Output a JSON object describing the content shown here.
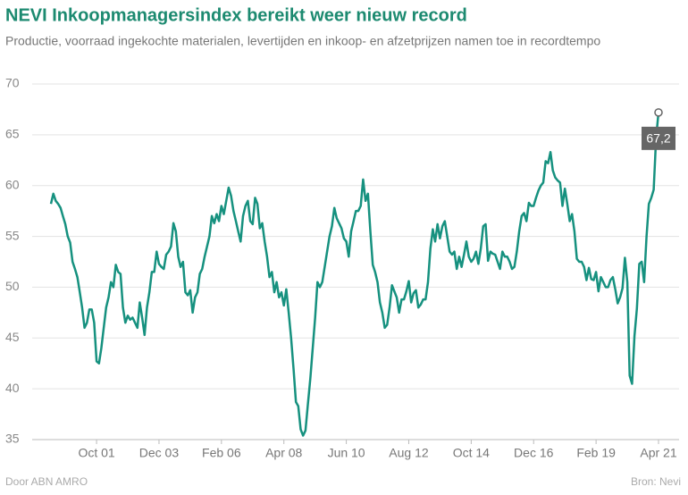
{
  "chart_data": {
    "type": "line",
    "title": "NEVI Inkoopmanagersindex bereikt weer nieuw record",
    "subtitle": "Productie, voorraad ingekochte materialen, levertijden en inkoop- en afzetprijzen namen toe in recordtempo",
    "source_left": "Door ABN AMRO",
    "source_right": "Bron: Nevi",
    "x": [
      "2000-03",
      "2000-04",
      "2000-05",
      "2000-06",
      "2000-07",
      "2000-08",
      "2000-09",
      "2000-10",
      "2000-11",
      "2000-12",
      "2001-01",
      "2001-02",
      "2001-03",
      "2001-04",
      "2001-05",
      "2001-06",
      "2001-07",
      "2001-08",
      "2001-09",
      "2001-10",
      "2001-11",
      "2001-12",
      "2002-01",
      "2002-02",
      "2002-03",
      "2002-04",
      "2002-05",
      "2002-06",
      "2002-07",
      "2002-08",
      "2002-09",
      "2002-10",
      "2002-11",
      "2002-12",
      "2003-01",
      "2003-02",
      "2003-03",
      "2003-04",
      "2003-05",
      "2003-06",
      "2003-07",
      "2003-08",
      "2003-09",
      "2003-10",
      "2003-11",
      "2003-12",
      "2004-01",
      "2004-02",
      "2004-03",
      "2004-04",
      "2004-05",
      "2004-06",
      "2004-07",
      "2004-08",
      "2004-09",
      "2004-10",
      "2004-11",
      "2004-12",
      "2005-01",
      "2005-02",
      "2005-03",
      "2005-04",
      "2005-05",
      "2005-06",
      "2005-07",
      "2005-08",
      "2005-09",
      "2005-10",
      "2005-11",
      "2005-12",
      "2006-01",
      "2006-02",
      "2006-03",
      "2006-04",
      "2006-05",
      "2006-06",
      "2006-07",
      "2006-08",
      "2006-09",
      "2006-10",
      "2006-11",
      "2006-12",
      "2007-01",
      "2007-02",
      "2007-03",
      "2007-04",
      "2007-05",
      "2007-06",
      "2007-07",
      "2007-08",
      "2007-09",
      "2007-10",
      "2007-11",
      "2007-12",
      "2008-01",
      "2008-02",
      "2008-03",
      "2008-04",
      "2008-05",
      "2008-06",
      "2008-07",
      "2008-08",
      "2008-09",
      "2008-10",
      "2008-11",
      "2008-12",
      "2009-01",
      "2009-02",
      "2009-03",
      "2009-04",
      "2009-05",
      "2009-06",
      "2009-07",
      "2009-08",
      "2009-09",
      "2009-10",
      "2009-11",
      "2009-12",
      "2010-01",
      "2010-02",
      "2010-03",
      "2010-04",
      "2010-05",
      "2010-06",
      "2010-07",
      "2010-08",
      "2010-09",
      "2010-10",
      "2010-11",
      "2010-12",
      "2011-01",
      "2011-02",
      "2011-03",
      "2011-04",
      "2011-05",
      "2011-06",
      "2011-07",
      "2011-08",
      "2011-09",
      "2011-10",
      "2011-11",
      "2011-12",
      "2012-01",
      "2012-02",
      "2012-03",
      "2012-04",
      "2012-05",
      "2012-06",
      "2012-07",
      "2012-08",
      "2012-09",
      "2012-10",
      "2012-11",
      "2012-12",
      "2013-01",
      "2013-02",
      "2013-03",
      "2013-04",
      "2013-05",
      "2013-06",
      "2013-07",
      "2013-08",
      "2013-09",
      "2013-10",
      "2013-11",
      "2013-12",
      "2014-01",
      "2014-02",
      "2014-03",
      "2014-04",
      "2014-05",
      "2014-06",
      "2014-07",
      "2014-08",
      "2014-09",
      "2014-10",
      "2014-11",
      "2014-12",
      "2015-01",
      "2015-02",
      "2015-03",
      "2015-04",
      "2015-05",
      "2015-06",
      "2015-07",
      "2015-08",
      "2015-09",
      "2015-10",
      "2015-11",
      "2015-12",
      "2016-01",
      "2016-02",
      "2016-03",
      "2016-04",
      "2016-05",
      "2016-06",
      "2016-07",
      "2016-08",
      "2016-09",
      "2016-10",
      "2016-11",
      "2016-12",
      "2017-01",
      "2017-02",
      "2017-03",
      "2017-04",
      "2017-05",
      "2017-06",
      "2017-07",
      "2017-08",
      "2017-09",
      "2017-10",
      "2017-11",
      "2017-12",
      "2018-01",
      "2018-02",
      "2018-03",
      "2018-04",
      "2018-05",
      "2018-06",
      "2018-07",
      "2018-08",
      "2018-09",
      "2018-10",
      "2018-11",
      "2018-12",
      "2019-01",
      "2019-02",
      "2019-03",
      "2019-04",
      "2019-05",
      "2019-06",
      "2019-07",
      "2019-08",
      "2019-09",
      "2019-10",
      "2019-11",
      "2019-12",
      "2020-01",
      "2020-02",
      "2020-03",
      "2020-04",
      "2020-05",
      "2020-06",
      "2020-07",
      "2020-08",
      "2020-09",
      "2020-10",
      "2020-11",
      "2020-12",
      "2021-01",
      "2021-02",
      "2021-03",
      "2021-04"
    ],
    "series": [
      {
        "name": "NEVI Inkoopmanagersindex",
        "color": "#16917f",
        "end_label": "67,2",
        "values": [
          58.2,
          59.2,
          58.5,
          58.2,
          57.8,
          57.0,
          56.2,
          55.0,
          54.4,
          52.5,
          51.8,
          51.0,
          49.5,
          48.0,
          46.0,
          46.5,
          47.8,
          47.8,
          46.5,
          42.7,
          42.5,
          44.0,
          46.0,
          48.0,
          49.0,
          50.5,
          50.0,
          52.2,
          51.5,
          51.3,
          48.0,
          46.5,
          47.2,
          46.8,
          47.0,
          46.5,
          46.0,
          48.5,
          47.0,
          45.3,
          48.0,
          49.5,
          51.5,
          51.5,
          53.5,
          52.3,
          52.0,
          51.8,
          53.2,
          53.5,
          54.0,
          56.3,
          55.5,
          53.0,
          52.0,
          52.5,
          49.5,
          49.2,
          49.7,
          47.5,
          49.0,
          49.5,
          51.3,
          51.8,
          53.0,
          54.0,
          55.0,
          57.0,
          56.3,
          57.2,
          56.5,
          58.0,
          57.2,
          58.5,
          59.8,
          59.0,
          57.5,
          56.5,
          55.5,
          54.5,
          57.0,
          58.0,
          58.5,
          56.5,
          56.2,
          58.8,
          58.2,
          55.8,
          56.3,
          54.5,
          53.0,
          51.0,
          51.5,
          49.5,
          50.5,
          49.0,
          49.5,
          48.2,
          49.8,
          47.5,
          45.0,
          42.0,
          38.7,
          38.3,
          36.0,
          35.4,
          35.9,
          38.5,
          41.0,
          44.0,
          47.0,
          50.5,
          50.0,
          50.5,
          52.0,
          53.5,
          55.0,
          56.0,
          57.8,
          56.8,
          56.3,
          55.8,
          54.8,
          54.5,
          53.0,
          55.5,
          56.5,
          57.5,
          57.5,
          58.0,
          60.6,
          58.5,
          59.2,
          55.5,
          52.2,
          51.5,
          50.5,
          48.5,
          47.5,
          46.0,
          46.3,
          48.0,
          50.2,
          49.6,
          49.0,
          47.5,
          48.8,
          48.8,
          49.6,
          50.6,
          48.5,
          49.4,
          49.7,
          48.0,
          48.3,
          48.8,
          48.8,
          50.5,
          53.8,
          55.7,
          54.5,
          56.2,
          54.8,
          56.0,
          56.5,
          55.0,
          53.5,
          53.2,
          53.5,
          51.8,
          53.0,
          52.0,
          53.2,
          54.5,
          53.0,
          52.5,
          52.8,
          53.5,
          52.3,
          53.8,
          56.0,
          56.2,
          52.6,
          53.5,
          53.3,
          53.2,
          52.5,
          51.8,
          53.5,
          53.0,
          53.0,
          52.5,
          51.8,
          52.0,
          53.5,
          55.5,
          57.0,
          57.3,
          56.5,
          58.3,
          58.0,
          58.0,
          58.8,
          59.5,
          60.0,
          60.3,
          62.4,
          62.2,
          63.3,
          61.5,
          60.8,
          60.5,
          60.3,
          58.0,
          59.7,
          58.2,
          56.5,
          57.2,
          55.5,
          52.8,
          52.5,
          52.5,
          52.0,
          50.7,
          51.9,
          50.8,
          50.7,
          51.5,
          49.6,
          51.0,
          50.5,
          50.0,
          50.0,
          50.7,
          51.0,
          49.8,
          48.4,
          49.0,
          49.9,
          52.9,
          50.5,
          41.3,
          40.5,
          45.2,
          47.9,
          52.3,
          52.5,
          50.5,
          55.0,
          58.2,
          58.8,
          59.6,
          64.7,
          67.2
        ]
      }
    ],
    "xticks": [
      {
        "value": "2001-10",
        "label": "Oct 01"
      },
      {
        "value": "2003-12",
        "label": "Dec 03"
      },
      {
        "value": "2006-02",
        "label": "Feb 06"
      },
      {
        "value": "2008-04",
        "label": "Apr 08"
      },
      {
        "value": "2010-06",
        "label": "Jun 10"
      },
      {
        "value": "2012-08",
        "label": "Aug 12"
      },
      {
        "value": "2014-10",
        "label": "Oct 14"
      },
      {
        "value": "2016-12",
        "label": "Dec 16"
      },
      {
        "value": "2019-02",
        "label": "Feb 19"
      },
      {
        "value": "2021-04",
        "label": "Apr 21"
      }
    ],
    "ylim": [
      35,
      70
    ],
    "yticks": [
      35,
      40,
      45,
      50,
      55,
      60,
      65,
      70
    ],
    "grid": true
  }
}
